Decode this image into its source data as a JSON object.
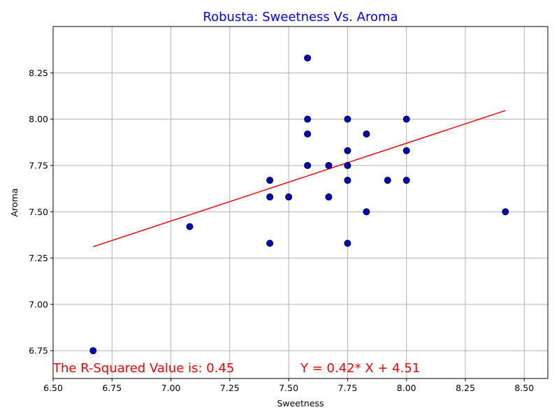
{
  "chart_data": {
    "type": "scatter",
    "title": "Robusta: Sweetness Vs. Aroma",
    "xlabel": "Sweetness",
    "ylabel": "Aroma",
    "xlim": [
      6.5,
      8.6
    ],
    "ylim": [
      6.6,
      8.5
    ],
    "x_ticks": [
      6.5,
      6.75,
      7.0,
      7.25,
      7.5,
      7.75,
      8.0,
      8.25,
      8.5
    ],
    "x_tick_labels": [
      "6.50",
      "6.75",
      "7.00",
      "7.25",
      "7.50",
      "7.75",
      "8.00",
      "8.25",
      "8.50"
    ],
    "y_ticks": [
      6.75,
      7.0,
      7.25,
      7.5,
      7.75,
      8.0,
      8.25
    ],
    "y_tick_labels": [
      "6.75",
      "7.00",
      "7.25",
      "7.50",
      "7.75",
      "8.00",
      "8.25"
    ],
    "grid": true,
    "points": [
      {
        "x": 6.67,
        "y": 6.75
      },
      {
        "x": 7.08,
        "y": 7.42
      },
      {
        "x": 7.42,
        "y": 7.67
      },
      {
        "x": 7.42,
        "y": 7.58
      },
      {
        "x": 7.42,
        "y": 7.33
      },
      {
        "x": 7.5,
        "y": 7.58
      },
      {
        "x": 7.58,
        "y": 8.33
      },
      {
        "x": 7.58,
        "y": 8.0
      },
      {
        "x": 7.58,
        "y": 7.92
      },
      {
        "x": 7.58,
        "y": 7.75
      },
      {
        "x": 7.67,
        "y": 7.75
      },
      {
        "x": 7.67,
        "y": 7.58
      },
      {
        "x": 7.75,
        "y": 8.0
      },
      {
        "x": 7.75,
        "y": 7.83
      },
      {
        "x": 7.75,
        "y": 7.75
      },
      {
        "x": 7.75,
        "y": 7.67
      },
      {
        "x": 7.75,
        "y": 7.33
      },
      {
        "x": 7.83,
        "y": 7.92
      },
      {
        "x": 7.83,
        "y": 7.5
      },
      {
        "x": 7.92,
        "y": 7.67
      },
      {
        "x": 8.0,
        "y": 8.0
      },
      {
        "x": 8.0,
        "y": 7.83
      },
      {
        "x": 8.0,
        "y": 7.67
      },
      {
        "x": 8.42,
        "y": 7.5
      }
    ],
    "regression": {
      "slope": 0.42,
      "intercept": 4.51,
      "x_range": [
        6.67,
        8.42
      ]
    },
    "annotations": {
      "r_squared": "The R-Squared Value is: 0.45",
      "equation": "Y = 0.42* X + 4.51"
    },
    "colors": {
      "points": "#0000cc",
      "point_edge": "#000000",
      "line": "#ff0000",
      "title": "#0000ff",
      "annotation": "#ff0000"
    }
  }
}
